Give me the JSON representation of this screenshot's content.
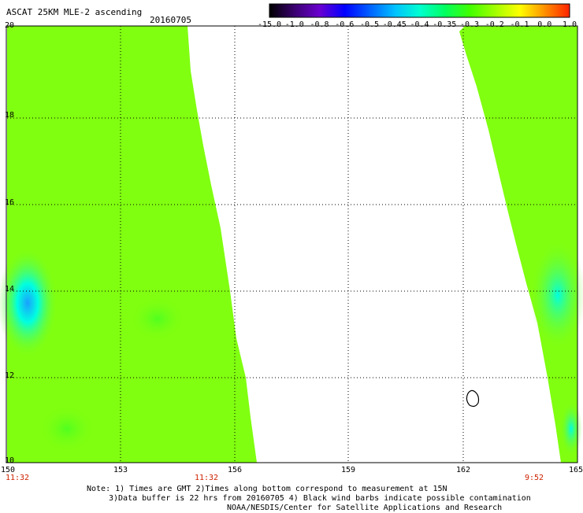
{
  "title": "ASCAT 25KM MLE-2 ascending",
  "date": "20160705",
  "colorbar": {
    "labels": [
      "-15.0",
      "-1.0",
      "-0.8",
      "-0.6",
      "-0.5",
      "-0.45",
      "-0.4",
      "-0.35",
      "-0.3",
      "-0.2",
      "-0.1",
      "0.0",
      "1.0"
    ],
    "colors": [
      "#000000",
      "#3a0070",
      "#6a00d0",
      "#0000ff",
      "#0060ff",
      "#00c0ff",
      "#00ffd0",
      "#00ff60",
      "#40ff00",
      "#a0ff00",
      "#ffff00",
      "#ff9000",
      "#ff2000"
    ]
  },
  "axes": {
    "lat_labels": [
      "20",
      "18",
      "16",
      "14",
      "12",
      "10"
    ],
    "lon_labels": [
      "150",
      "153",
      "156",
      "159",
      "162",
      "165"
    ],
    "lat_range": [
      10,
      20
    ],
    "lon_range": [
      150,
      165
    ]
  },
  "times": [
    "11:32",
    "11:32",
    "9:52"
  ],
  "note": {
    "line1": "Note: 1) Times are GMT 2)Times along bottom correspond to measurement at 15N",
    "line2": "3)Data buffer is 22 hrs from 20160705 4) Black wind barbs indicate possible contamination",
    "line3": "NOAA/NESDIS/Center for Satellite Applications and Research"
  },
  "field_colors": {
    "base": "#80ff10",
    "mid": "#50ff20",
    "cyan": "#00ffe0",
    "blue": "#1aa0ff",
    "bright": "#a0ff00"
  }
}
